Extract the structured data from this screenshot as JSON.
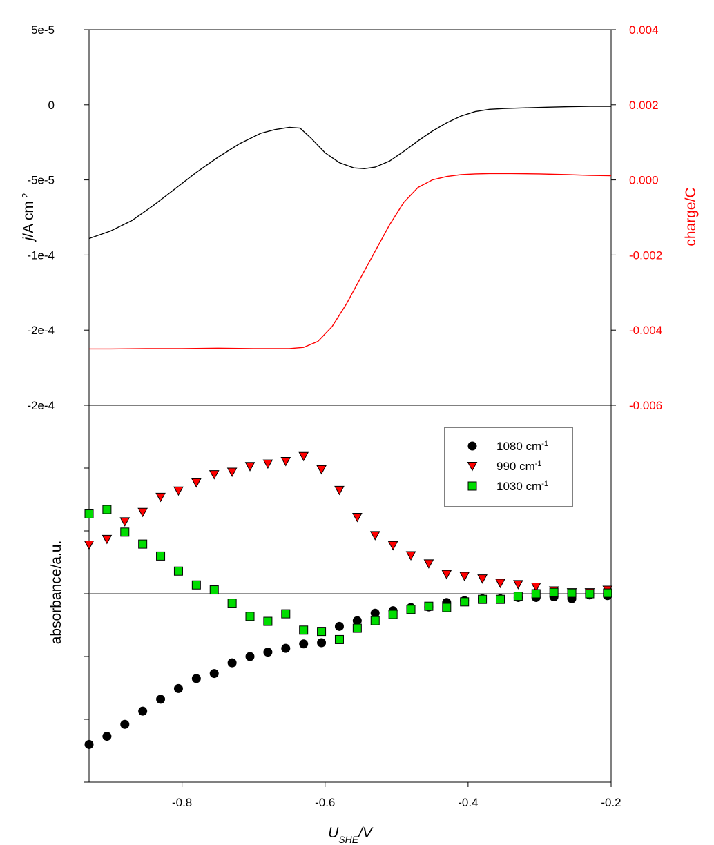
{
  "chart_data": [
    {
      "type": "line",
      "panel": "top",
      "xlim": [
        -0.93,
        -0.2
      ],
      "x_tick_labels": [
        "-0.8",
        "-0.6",
        "-0.4",
        "-0.2"
      ],
      "left_axis": {
        "label_main": "j",
        "label_rest": "/A cm",
        "label_sup": "-2",
        "ylim": [
          -0.0002,
          5e-05
        ],
        "tick_labels": [
          "5e-5",
          "0",
          "-5e-5",
          "-1e-4",
          "-2e-4",
          "-2e-4"
        ],
        "color": "#000000"
      },
      "right_axis": {
        "label": "charge/C",
        "ylim": [
          -0.006,
          0.004
        ],
        "tick_labels": [
          "0.004",
          "0.002",
          "0.000",
          "-0.002",
          "-0.004",
          "-0.006"
        ],
        "color": "#ff0000"
      },
      "series": [
        {
          "axis": "left",
          "color": "#000000",
          "points": [
            [
              -0.93,
              -8.9e-05
            ],
            [
              -0.9,
              -8.4e-05
            ],
            [
              -0.87,
              -7.7e-05
            ],
            [
              -0.84,
              -6.7e-05
            ],
            [
              -0.81,
              -5.6e-05
            ],
            [
              -0.78,
              -4.5e-05
            ],
            [
              -0.75,
              -3.5e-05
            ],
            [
              -0.72,
              -2.6e-05
            ],
            [
              -0.69,
              -1.9e-05
            ],
            [
              -0.67,
              -1.65e-05
            ],
            [
              -0.65,
              -1.5e-05
            ],
            [
              -0.635,
              -1.55e-05
            ],
            [
              -0.62,
              -2.2e-05
            ],
            [
              -0.6,
              -3.2e-05
            ],
            [
              -0.58,
              -3.85e-05
            ],
            [
              -0.56,
              -4.2e-05
            ],
            [
              -0.545,
              -4.25e-05
            ],
            [
              -0.53,
              -4.15e-05
            ],
            [
              -0.51,
              -3.75e-05
            ],
            [
              -0.49,
              -3.1e-05
            ],
            [
              -0.47,
              -2.4e-05
            ],
            [
              -0.45,
              -1.75e-05
            ],
            [
              -0.43,
              -1.2e-05
            ],
            [
              -0.41,
              -7.5e-06
            ],
            [
              -0.39,
              -4.5e-06
            ],
            [
              -0.37,
              -3e-06
            ],
            [
              -0.35,
              -2.5e-06
            ],
            [
              -0.32,
              -2e-06
            ],
            [
              -0.29,
              -1.6e-06
            ],
            [
              -0.26,
              -1.3e-06
            ],
            [
              -0.23,
              -1e-06
            ],
            [
              -0.2,
              -1e-06
            ]
          ]
        },
        {
          "axis": "right",
          "color": "#ff0000",
          "points": [
            [
              -0.93,
              -0.0045
            ],
            [
              -0.9,
              -0.0045
            ],
            [
              -0.85,
              -0.00449
            ],
            [
              -0.8,
              -0.00449
            ],
            [
              -0.75,
              -0.00448
            ],
            [
              -0.7,
              -0.00449
            ],
            [
              -0.65,
              -0.00449
            ],
            [
              -0.63,
              -0.00446
            ],
            [
              -0.61,
              -0.0043
            ],
            [
              -0.59,
              -0.0039
            ],
            [
              -0.57,
              -0.0033
            ],
            [
              -0.55,
              -0.0026
            ],
            [
              -0.53,
              -0.0019
            ],
            [
              -0.51,
              -0.0012
            ],
            [
              -0.49,
              -0.0006
            ],
            [
              -0.47,
              -0.0002
            ],
            [
              -0.45,
              0.0
            ],
            [
              -0.43,
              9e-05
            ],
            [
              -0.41,
              0.00014
            ],
            [
              -0.39,
              0.00016
            ],
            [
              -0.37,
              0.00017
            ],
            [
              -0.34,
              0.00017
            ],
            [
              -0.3,
              0.00016
            ],
            [
              -0.26,
              0.00014
            ],
            [
              -0.23,
              0.00012
            ],
            [
              -0.2,
              0.00011
            ]
          ]
        }
      ]
    },
    {
      "type": "scatter",
      "panel": "bottom",
      "xlim": [
        -0.93,
        -0.2
      ],
      "ylim": [
        -3,
        3
      ],
      "xlabel_main": "U",
      "xlabel_sub": "SHE",
      "xlabel_rest": "/V",
      "ylabel": "absorbance/a.u.",
      "x_tick_labels": [
        "-0.8",
        "-0.6",
        "-0.4",
        "-0.2"
      ],
      "x_ticks": [
        -0.8,
        -0.6,
        -0.4,
        -0.2
      ],
      "y_ticks": [
        -3,
        -2,
        -1,
        0,
        1,
        2,
        3
      ],
      "zero_line": true,
      "legend_position": "top-right",
      "x": [
        -0.93,
        -0.905,
        -0.88,
        -0.855,
        -0.83,
        -0.805,
        -0.78,
        -0.755,
        -0.73,
        -0.705,
        -0.68,
        -0.655,
        -0.63,
        -0.605,
        -0.58,
        -0.555,
        -0.53,
        -0.505,
        -0.48,
        -0.455,
        -0.43,
        -0.405,
        -0.38,
        -0.355,
        -0.33,
        -0.305,
        -0.28,
        -0.255,
        -0.23,
        -0.205
      ],
      "series": [
        {
          "name_main": "1080 cm",
          "name_sup": "-1",
          "marker": "circle",
          "color": "#000000",
          "values": [
            -2.4,
            -2.27,
            -2.08,
            -1.87,
            -1.68,
            -1.51,
            -1.35,
            -1.27,
            -1.1,
            -1.0,
            -0.93,
            -0.87,
            -0.8,
            -0.78,
            -0.52,
            -0.43,
            -0.31,
            -0.27,
            -0.22,
            -0.21,
            -0.14,
            -0.11,
            -0.08,
            -0.08,
            -0.06,
            -0.06,
            -0.05,
            -0.08,
            -0.02,
            -0.03
          ]
        },
        {
          "name_main": "990 cm",
          "name_sup": "-1",
          "marker": "triangle-down",
          "color": "#ff0000",
          "values": [
            0.78,
            0.87,
            1.15,
            1.3,
            1.54,
            1.64,
            1.77,
            1.9,
            1.94,
            2.03,
            2.07,
            2.11,
            2.19,
            1.98,
            1.65,
            1.22,
            0.93,
            0.77,
            0.61,
            0.48,
            0.31,
            0.28,
            0.24,
            0.17,
            0.15,
            0.11,
            0.05,
            0.02,
            0.02,
            0.06
          ]
        },
        {
          "name_main": "1030 cm",
          "name_sup": "-1",
          "marker": "square",
          "color": "#00dd00",
          "values": [
            1.27,
            1.34,
            0.98,
            0.79,
            0.6,
            0.36,
            0.14,
            0.06,
            -0.15,
            -0.36,
            -0.44,
            -0.32,
            -0.58,
            -0.6,
            -0.73,
            -0.55,
            -0.43,
            -0.33,
            -0.25,
            -0.2,
            -0.22,
            -0.13,
            -0.09,
            -0.09,
            -0.04,
            0.0,
            0.02,
            0.01,
            0.0,
            0.01
          ]
        }
      ]
    }
  ]
}
